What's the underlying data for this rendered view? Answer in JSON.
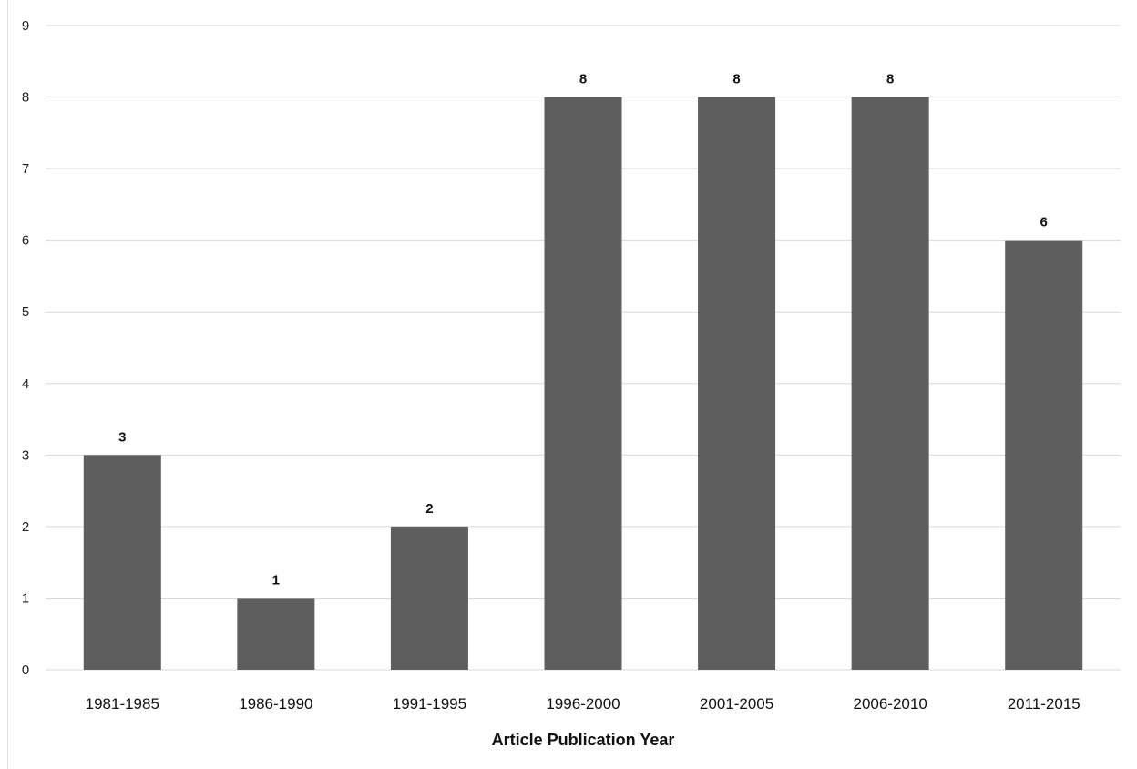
{
  "chart_data": {
    "type": "bar",
    "categories": [
      "1981-1985",
      "1986-1990",
      "1991-1995",
      "1996-2000",
      "2001-2005",
      "2006-2010",
      "2011-2015"
    ],
    "values": [
      3,
      1,
      2,
      8,
      8,
      8,
      6
    ],
    "data_labels": [
      "3",
      "1",
      "2",
      "8",
      "8",
      "8",
      "6"
    ],
    "title": "",
    "xlabel": "Article Publication Year",
    "ylabel": "",
    "ylim": [
      0,
      9
    ],
    "yticks": [
      "0",
      "1",
      "2",
      "3",
      "4",
      "5",
      "6",
      "7",
      "8",
      "9"
    ],
    "grid": true,
    "legend": "none",
    "colors": {
      "bar": "#5e5e5e",
      "grid": "#d9d9d9"
    }
  }
}
